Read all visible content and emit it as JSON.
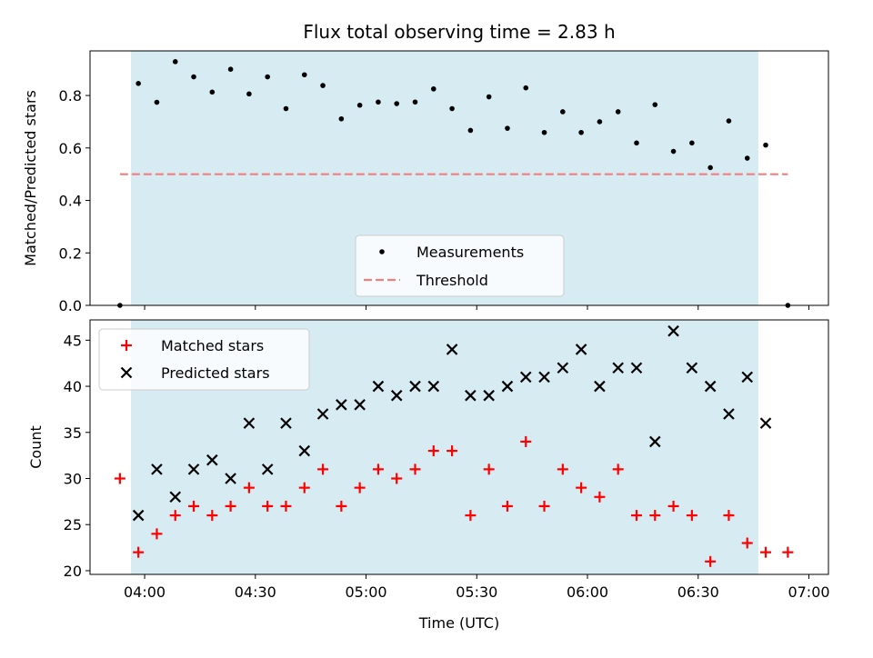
{
  "chart_data": [
    {
      "type": "scatter",
      "title": "Flux total observing time = 2.83 h",
      "ylabel": "Matched/Predicted stars",
      "xlabel": "",
      "ylim": [
        0.0,
        0.97
      ],
      "yticks": [
        "0.0",
        "0.2",
        "0.4",
        "0.6",
        "0.8"
      ],
      "ytick_values": [
        0.0,
        0.2,
        0.4,
        0.6,
        0.8
      ],
      "xlim_minutes": [
        225.2,
        425.3
      ],
      "shaded_span_minutes": [
        236.3,
        406.3
      ],
      "shaded_color": "#add8e6",
      "legend": {
        "placement": "lower-center",
        "entries": [
          "Measurements",
          "Threshold"
        ]
      },
      "threshold": {
        "name": "Threshold",
        "y": 0.5,
        "x_start": 233.3,
        "x_end": 414.3,
        "color": "#f08080"
      },
      "series": [
        {
          "name": "Measurements",
          "color": "#000000",
          "x": [
            233.3,
            238.3,
            243.3,
            248.3,
            253.3,
            258.3,
            263.3,
            268.3,
            273.3,
            278.3,
            283.3,
            288.3,
            293.3,
            298.3,
            303.3,
            308.3,
            313.3,
            318.3,
            323.3,
            328.3,
            333.3,
            338.3,
            343.3,
            348.3,
            353.3,
            358.3,
            363.3,
            368.3,
            373.3,
            378.3,
            383.3,
            388.3,
            393.3,
            398.3,
            403.3,
            408.3,
            414.3
          ],
          "y": [
            0.0,
            0.846,
            0.774,
            0.929,
            0.871,
            0.813,
            0.9,
            0.806,
            0.871,
            0.75,
            0.879,
            0.838,
            0.711,
            0.763,
            0.775,
            0.769,
            0.775,
            0.825,
            0.75,
            0.667,
            0.795,
            0.675,
            0.829,
            0.659,
            0.738,
            0.659,
            0.7,
            0.738,
            0.619,
            0.765,
            0.587,
            0.619,
            0.525,
            0.703,
            0.561,
            0.611,
            0.0
          ]
        }
      ]
    },
    {
      "type": "scatter",
      "title": "",
      "xlabel": "Time (UTC)",
      "ylabel": "Count",
      "ylim": [
        19.6,
        47.2
      ],
      "yticks": [
        "20",
        "25",
        "30",
        "35",
        "40",
        "45"
      ],
      "ytick_values": [
        20,
        25,
        30,
        35,
        40,
        45
      ],
      "xticks": [
        "04:00",
        "04:30",
        "05:00",
        "05:30",
        "06:00",
        "06:30",
        "07:00"
      ],
      "xtick_minutes": [
        240,
        270,
        300,
        330,
        360,
        390,
        420
      ],
      "xlim_minutes": [
        225.2,
        425.3
      ],
      "shaded_span_minutes": [
        236.3,
        406.3
      ],
      "legend": {
        "placement": "upper-left",
        "entries": [
          "Matched stars",
          "Predicted stars"
        ]
      },
      "series": [
        {
          "name": "Matched stars",
          "marker": "plus",
          "color": "#ff0000",
          "x": [
            233.3,
            238.3,
            243.3,
            248.3,
            253.3,
            258.3,
            263.3,
            268.3,
            273.3,
            278.3,
            283.3,
            288.3,
            293.3,
            298.3,
            303.3,
            308.3,
            313.3,
            318.3,
            323.3,
            328.3,
            333.3,
            338.3,
            343.3,
            348.3,
            353.3,
            358.3,
            363.3,
            368.3,
            373.3,
            378.3,
            383.3,
            388.3,
            393.3,
            398.3,
            403.3,
            408.3,
            414.3
          ],
          "y": [
            30,
            22,
            24,
            26,
            27,
            26,
            27,
            29,
            27,
            27,
            29,
            31,
            27,
            29,
            31,
            30,
            31,
            33,
            33,
            26,
            31,
            27,
            34,
            27,
            31,
            29,
            28,
            31,
            26,
            26,
            27,
            26,
            21,
            26,
            23,
            22,
            22
          ]
        },
        {
          "name": "Predicted stars",
          "marker": "x",
          "color": "#000000",
          "x": [
            238.3,
            243.3,
            248.3,
            253.3,
            258.3,
            263.3,
            268.3,
            273.3,
            278.3,
            283.3,
            288.3,
            293.3,
            298.3,
            303.3,
            308.3,
            313.3,
            318.3,
            323.3,
            328.3,
            333.3,
            338.3,
            343.3,
            348.3,
            353.3,
            358.3,
            363.3,
            368.3,
            373.3,
            378.3,
            383.3,
            388.3,
            393.3,
            398.3,
            403.3,
            408.3
          ],
          "y": [
            26,
            31,
            28,
            31,
            32,
            30,
            36,
            31,
            36,
            33,
            37,
            38,
            38,
            40,
            39,
            40,
            40,
            44,
            39,
            39,
            40,
            41,
            41,
            42,
            44,
            40,
            42,
            42,
            34,
            46,
            42,
            40,
            37,
            41,
            36
          ]
        }
      ]
    }
  ]
}
